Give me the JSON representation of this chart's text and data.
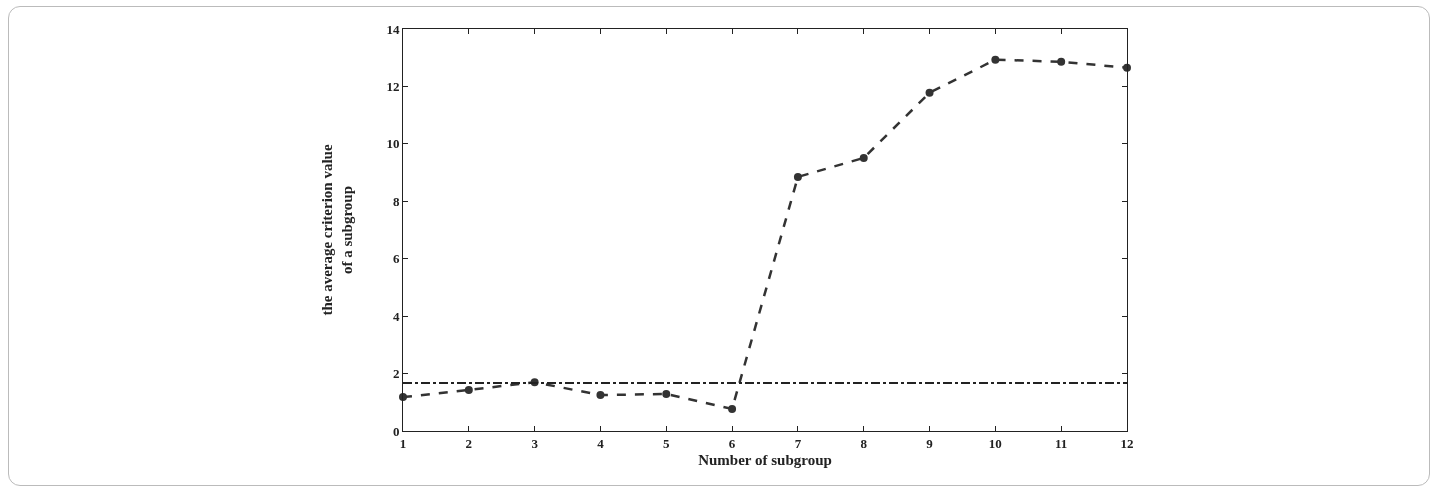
{
  "chart_data": {
    "type": "line",
    "xlabel": "Number of subgroup",
    "ylabel": "the average criterion value\nof a subgroup",
    "x": [
      1,
      2,
      3,
      4,
      5,
      6,
      7,
      8,
      9,
      10,
      11,
      12
    ],
    "series": [
      {
        "color": "#333333",
        "values": [
          1.18,
          1.43,
          1.7,
          1.25,
          1.29,
          0.77,
          8.85,
          9.51,
          11.78,
          12.93,
          12.86,
          12.65
        ]
      }
    ],
    "ref_lines": [
      {
        "axis": "y",
        "value": 1.67,
        "color": "#222222",
        "line_style": "dashdot"
      }
    ],
    "xlim": [
      1,
      12
    ],
    "xticks": [
      1,
      2,
      3,
      4,
      5,
      6,
      7,
      8,
      9,
      10,
      11,
      12
    ],
    "ylim": [
      0,
      14
    ],
    "yticks": [
      0,
      2,
      4,
      6,
      8,
      10,
      12,
      14
    ],
    "grid": false,
    "marker": "circle",
    "line_style": "dashed"
  }
}
